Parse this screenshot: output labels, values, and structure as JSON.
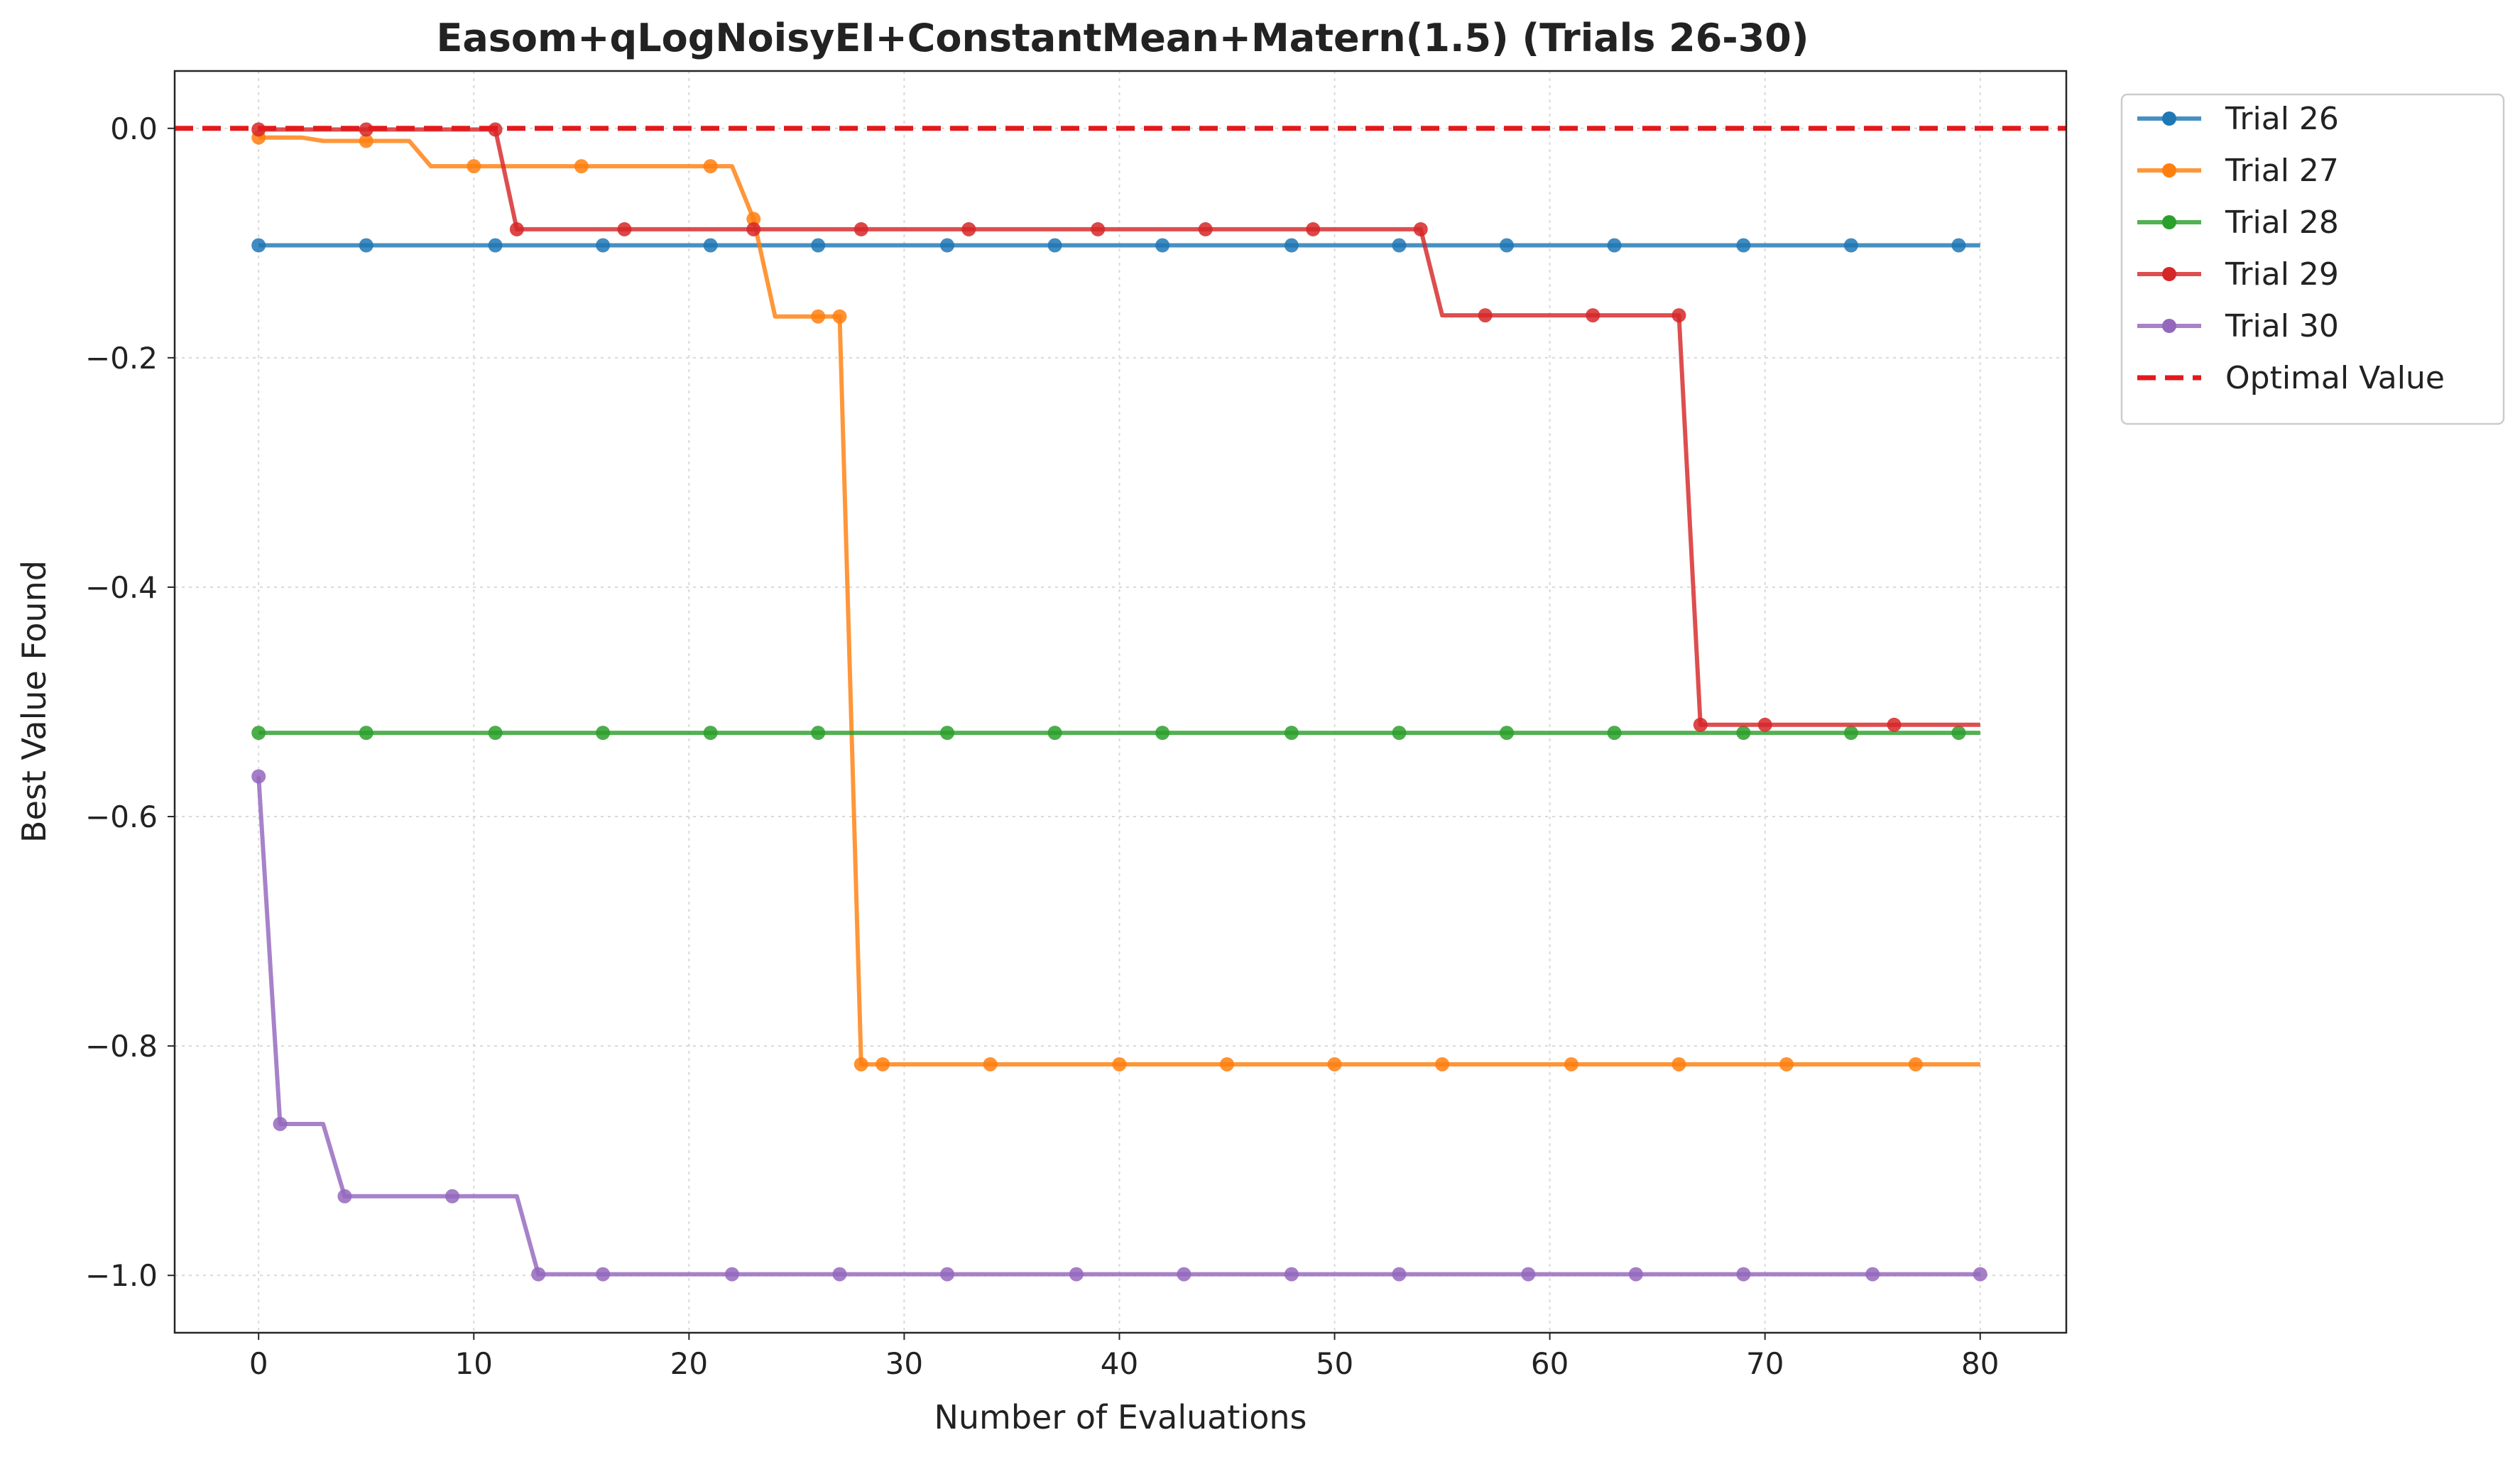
{
  "chart_data": {
    "type": "line",
    "title": "Easom+qLogNoisyEI+ConstantMean+Matern(1.5) (Trials 26-30)",
    "xlabel": "Number of Evaluations",
    "ylabel": "Best Value Found",
    "xlim": [
      -3.9,
      84
    ],
    "ylim": [
      -1.05,
      0.05
    ],
    "xticks": [
      0,
      10,
      20,
      30,
      40,
      50,
      60,
      70,
      80
    ],
    "xtick_labels": [
      "0",
      "10",
      "20",
      "30",
      "40",
      "50",
      "60",
      "70",
      "80"
    ],
    "yticks": [
      0.0,
      -0.2,
      -0.4,
      -0.6,
      -0.8,
      -1.0
    ],
    "ytick_labels": [
      "0.0",
      "−0.2",
      "−0.4",
      "−0.6",
      "−0.8",
      "−1.0"
    ],
    "grid": true,
    "legend_position": "outside upper right",
    "series": [
      {
        "name": "Trial 26",
        "color": "#1f77b4",
        "steps": [
          [
            0,
            -0.102
          ],
          [
            80,
            -0.102
          ]
        ],
        "markers": [
          0,
          5,
          11,
          16,
          21,
          26,
          32,
          37,
          42,
          48,
          53,
          58,
          63,
          69,
          74,
          79
        ]
      },
      {
        "name": "Trial 27",
        "color": "#ff7f0e",
        "steps": [
          [
            0,
            -0.008
          ],
          [
            2,
            -0.008
          ],
          [
            3,
            -0.011
          ],
          [
            7,
            -0.011
          ],
          [
            8,
            -0.033
          ],
          [
            22,
            -0.033
          ],
          [
            23,
            -0.079
          ],
          [
            24,
            -0.164
          ],
          [
            27,
            -0.164
          ],
          [
            28,
            -0.816
          ],
          [
            80,
            -0.816
          ]
        ],
        "markers": [
          0,
          5,
          10,
          15,
          21,
          23,
          26,
          27,
          28,
          29,
          34,
          40,
          45,
          50,
          55,
          61,
          66,
          71,
          77
        ]
      },
      {
        "name": "Trial 28",
        "color": "#2ca02c",
        "steps": [
          [
            0,
            -0.527
          ],
          [
            80,
            -0.527
          ]
        ],
        "markers": [
          0,
          5,
          11,
          16,
          21,
          26,
          32,
          37,
          42,
          48,
          53,
          58,
          63,
          69,
          74,
          79
        ]
      },
      {
        "name": "Trial 29",
        "color": "#d62728",
        "steps": [
          [
            0,
            -0.001
          ],
          [
            11,
            -0.001
          ],
          [
            12,
            -0.088
          ],
          [
            54,
            -0.088
          ],
          [
            55,
            -0.163
          ],
          [
            66,
            -0.163
          ],
          [
            67,
            -0.52
          ],
          [
            80,
            -0.52
          ]
        ],
        "markers": [
          0,
          5,
          11,
          12,
          17,
          23,
          28,
          33,
          39,
          44,
          49,
          54,
          57,
          62,
          66,
          67,
          70,
          76
        ]
      },
      {
        "name": "Trial 30",
        "color": "#9467bd",
        "steps": [
          [
            0,
            -0.565
          ],
          [
            1,
            -0.868
          ],
          [
            3,
            -0.868
          ],
          [
            4,
            -0.931
          ],
          [
            12,
            -0.931
          ],
          [
            13,
            -0.999
          ],
          [
            80,
            -0.999
          ]
        ],
        "markers": [
          0,
          1,
          4,
          9,
          13,
          16,
          22,
          27,
          32,
          38,
          43,
          48,
          53,
          59,
          64,
          69,
          75,
          80
        ]
      }
    ],
    "reference_line": {
      "name": "Optimal Value",
      "y": 0.0,
      "color": "#e31a1c",
      "style": "dashed"
    }
  }
}
